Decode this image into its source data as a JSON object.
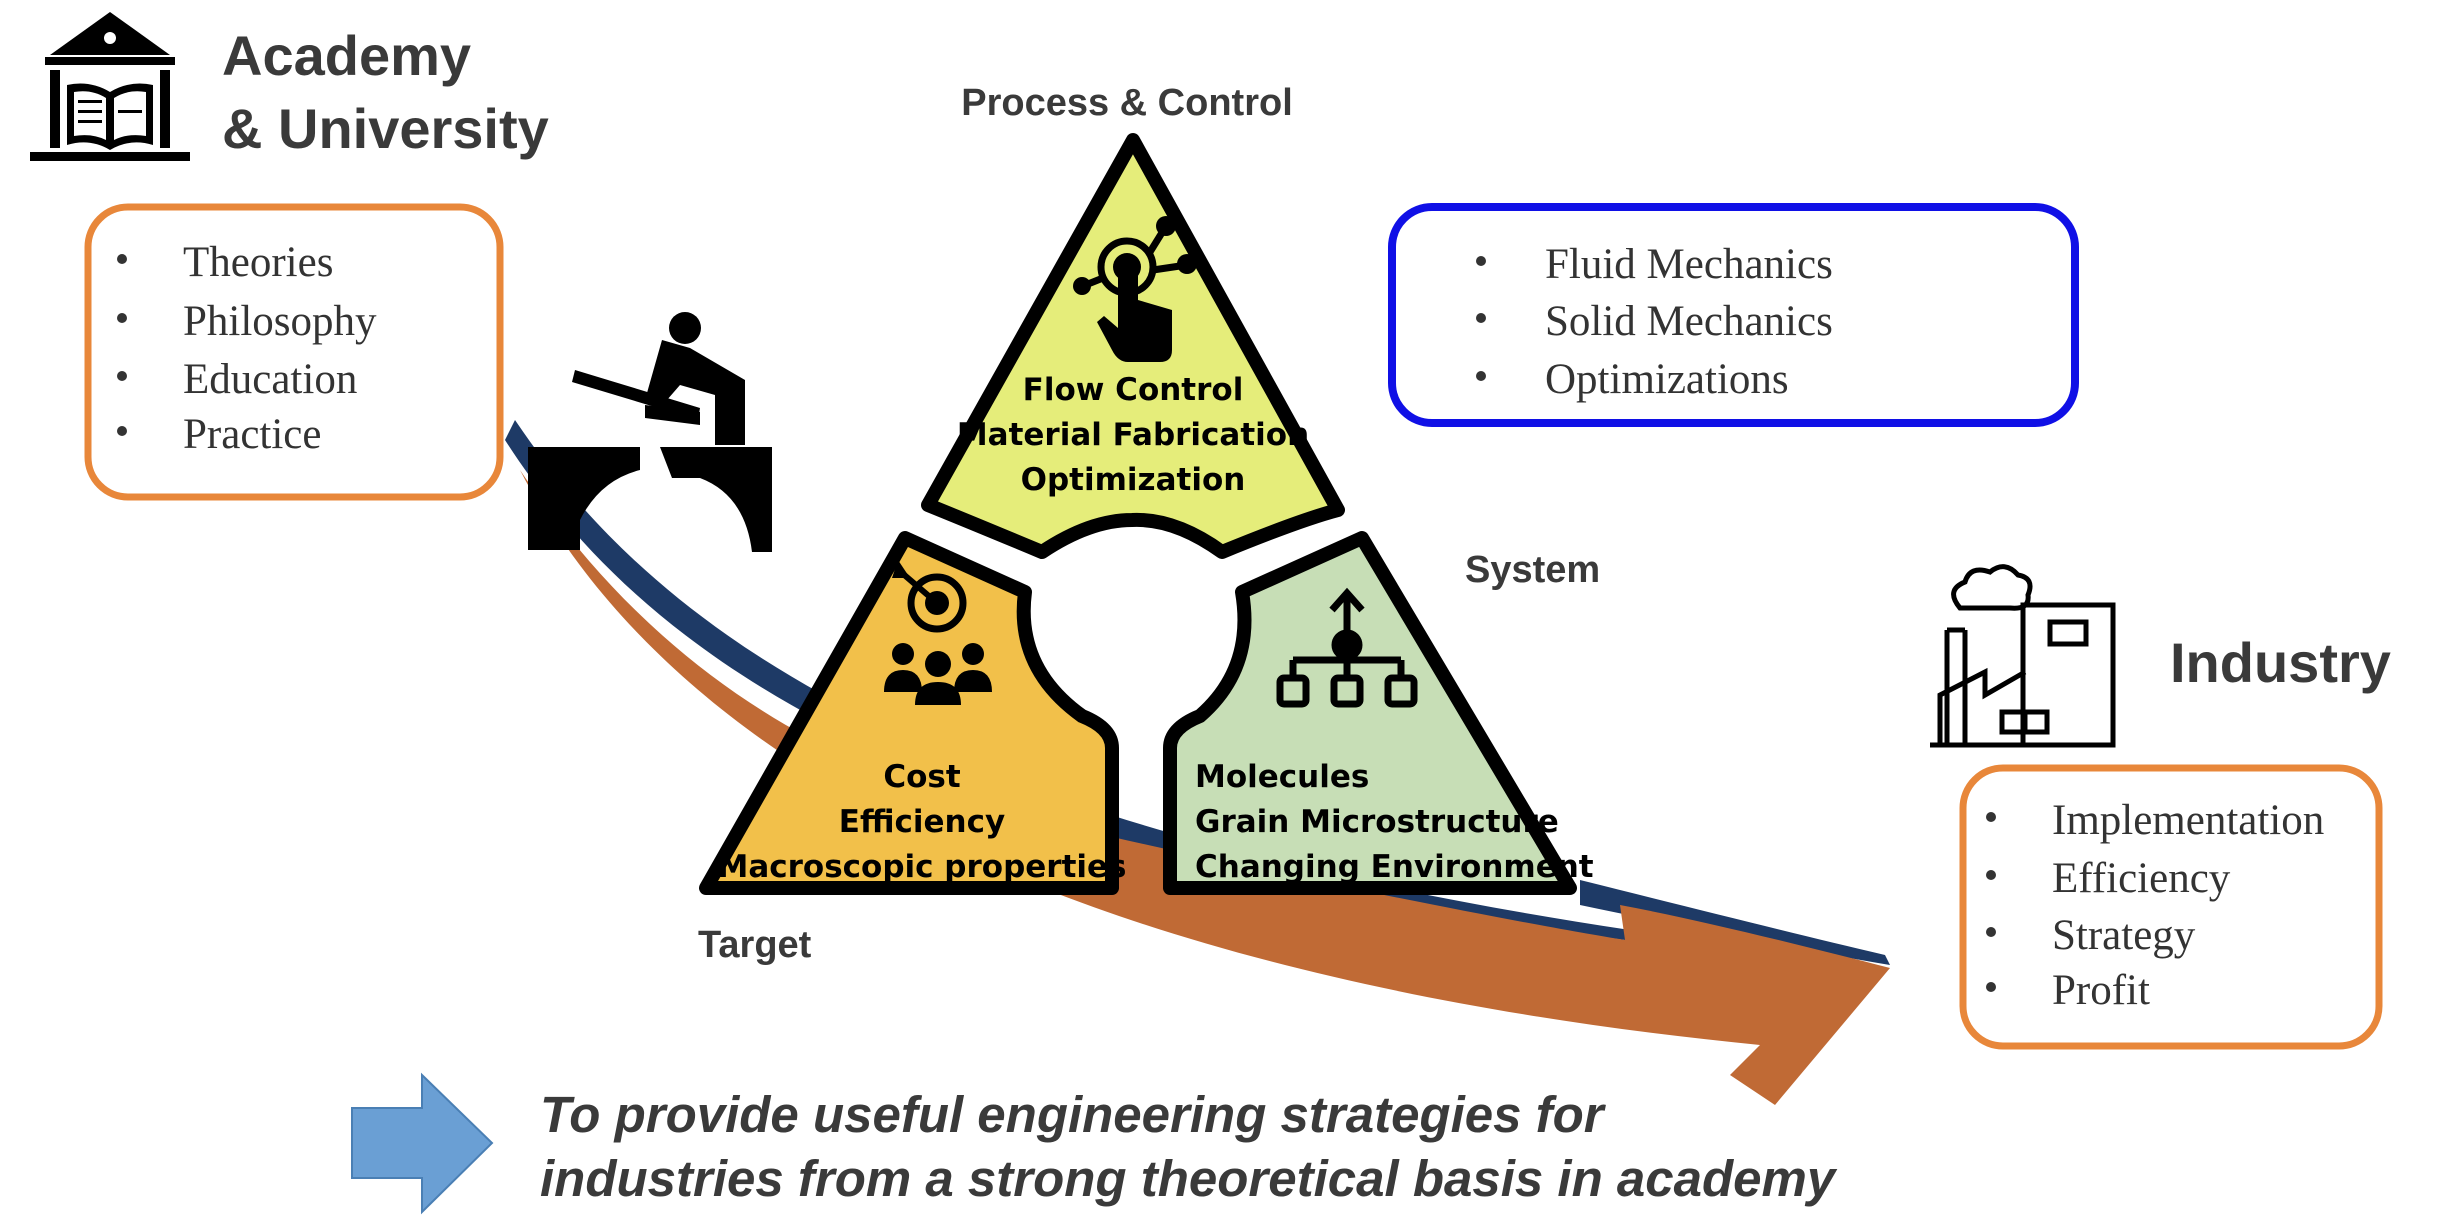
{
  "academy": {
    "title_line1": "Academy",
    "title_line2": "& University",
    "items": [
      "Theories",
      "Philosophy",
      "Education",
      "Practice"
    ]
  },
  "triangle": {
    "top_header": "Process & Control",
    "top_lines": [
      "Flow Control",
      "Material Fabrication",
      "Optimization"
    ],
    "left_lines": [
      "Cost",
      "Efficiency",
      "Macroscopic properties"
    ],
    "right_lines": [
      "Molecules",
      "Grain Microstructure",
      "Changing Environment"
    ],
    "system_label": "System",
    "target_label": "Target"
  },
  "mechanics": {
    "items": [
      "Fluid Mechanics",
      "Solid Mechanics",
      "Optimizations"
    ]
  },
  "industry": {
    "title": "Industry",
    "items": [
      "Implementation",
      "Efficiency",
      "Strategy",
      "Profit"
    ]
  },
  "conclusion": {
    "line1": "To provide useful engineering strategies for",
    "line2": "industries from a strong theoretical basis in academy"
  },
  "colors": {
    "orange_border": "#e8873a",
    "blue_border": "#1010e6",
    "top_fill": "#e5ed7a",
    "left_fill": "#f2c04a",
    "right_fill": "#c7deb6",
    "ribbon_brown": "#c06a35",
    "ribbon_navy": "#1e3a66",
    "arrow_blue": "#6a9fd4"
  }
}
